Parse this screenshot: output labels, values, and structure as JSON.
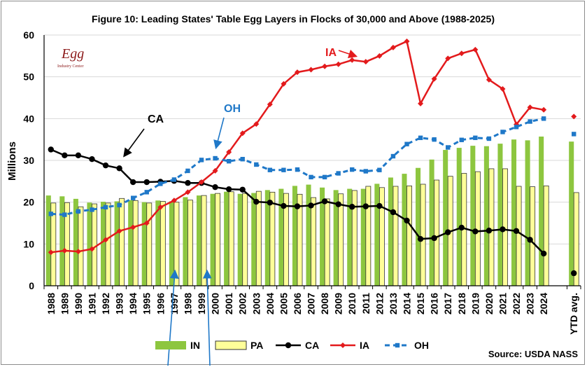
{
  "chart_data": {
    "type": "bar+line",
    "title": "Figure 10:  Leading States' Table Egg Layers in Flocks of 30,000 and Above (1988-2025)",
    "ylabel": "Millions",
    "ylim": [
      0,
      60
    ],
    "yticks": [
      "0",
      "10",
      "20",
      "30",
      "40",
      "50",
      "60"
    ],
    "grid": true,
    "categories": [
      "1988",
      "1989",
      "1990",
      "1991",
      "1992",
      "1993",
      "1994",
      "1995",
      "1996",
      "1997",
      "1998",
      "1999",
      "2000",
      "2001",
      "2002",
      "2003",
      "2004",
      "2005",
      "2006",
      "2007",
      "2008",
      "2009",
      "2010",
      "2011",
      "2012",
      "2013",
      "2014",
      "2015",
      "2016",
      "2017",
      "2018",
      "2019",
      "2020",
      "2021",
      "2022",
      "2023",
      "2024",
      "YTD avg."
    ],
    "series": [
      {
        "name": "IN",
        "kind": "bar",
        "color": "#8dc63f",
        "values": [
          21.6,
          21.4,
          20.8,
          19.9,
          20.1,
          20.2,
          20.5,
          20.0,
          20.4,
          20.2,
          21.2,
          21.6,
          22.0,
          22.5,
          22.0,
          22.2,
          22.9,
          23.2,
          23.9,
          24.2,
          23.5,
          22.9,
          23.2,
          23.2,
          24.4,
          25.9,
          26.8,
          28.2,
          30.2,
          32.5,
          33.0,
          33.5,
          33.4,
          34.0,
          35.0,
          34.8,
          35.7,
          34.5
        ]
      },
      {
        "name": "PA",
        "kind": "bar",
        "color": "#ffff99",
        "values": [
          19.8,
          19.9,
          18.9,
          19.6,
          19.8,
          20.9,
          20.4,
          19.8,
          20.2,
          20.0,
          20.5,
          21.6,
          22.1,
          22.5,
          22.1,
          22.6,
          22.4,
          22.1,
          21.9,
          21.1,
          20.8,
          22.0,
          22.8,
          23.8,
          23.5,
          23.8,
          23.9,
          24.3,
          25.3,
          26.2,
          26.9,
          27.3,
          28.0,
          28.0,
          23.8,
          23.7,
          23.9,
          22.3
        ]
      },
      {
        "name": "CA",
        "kind": "line",
        "color": "#000000",
        "marker": "circle",
        "values": [
          32.6,
          31.2,
          31.2,
          30.3,
          28.8,
          28.1,
          24.8,
          24.8,
          24.9,
          25.1,
          24.6,
          24.6,
          23.6,
          23.1,
          23.0,
          20.1,
          19.9,
          19.1,
          19.0,
          19.2,
          20.2,
          19.5,
          18.9,
          19.0,
          19.1,
          17.6,
          15.6,
          11.2,
          11.4,
          12.8,
          13.9,
          13.0,
          13.2,
          13.5,
          13.1,
          11.0,
          7.7,
          3.0
        ]
      },
      {
        "name": "IA",
        "kind": "line",
        "color": "#e31a1c",
        "marker": "diamond",
        "values": [
          8.0,
          8.4,
          8.2,
          8.8,
          11.0,
          13.1,
          14.0,
          15.0,
          18.8,
          20.4,
          22.4,
          24.8,
          27.5,
          32.0,
          36.5,
          38.7,
          43.4,
          48.3,
          51.1,
          51.7,
          52.5,
          53.0,
          54.0,
          53.6,
          55.0,
          57.0,
          58.5,
          43.6,
          49.5,
          54.4,
          55.6,
          56.5,
          49.3,
          47.1,
          38.6,
          42.7,
          42.1,
          40.5
        ]
      },
      {
        "name": "OH",
        "kind": "line",
        "dashed": true,
        "color": "#1f78c8",
        "marker": "square",
        "values": [
          17.2,
          17.0,
          17.8,
          18.2,
          18.8,
          19.3,
          21.0,
          22.4,
          24.4,
          25.4,
          27.5,
          30.1,
          30.5,
          29.8,
          30.3,
          29.0,
          27.7,
          27.7,
          27.8,
          26.0,
          26.0,
          26.9,
          27.8,
          27.4,
          27.7,
          31.0,
          33.9,
          35.4,
          35.0,
          33.1,
          34.9,
          35.4,
          35.2,
          36.8,
          38.0,
          39.3,
          40.0,
          36.3
        ]
      }
    ],
    "annotations": [
      {
        "text": "IA",
        "color": "#e31a1c"
      },
      {
        "text": "OH",
        "color": "#1f78c8"
      },
      {
        "text": "CA",
        "color": "#000000"
      }
    ],
    "legend_position": "bottom-center",
    "source": "Source:  USDA NASS"
  },
  "logo": {
    "word": "Egg",
    "sub": "Industry Center"
  }
}
